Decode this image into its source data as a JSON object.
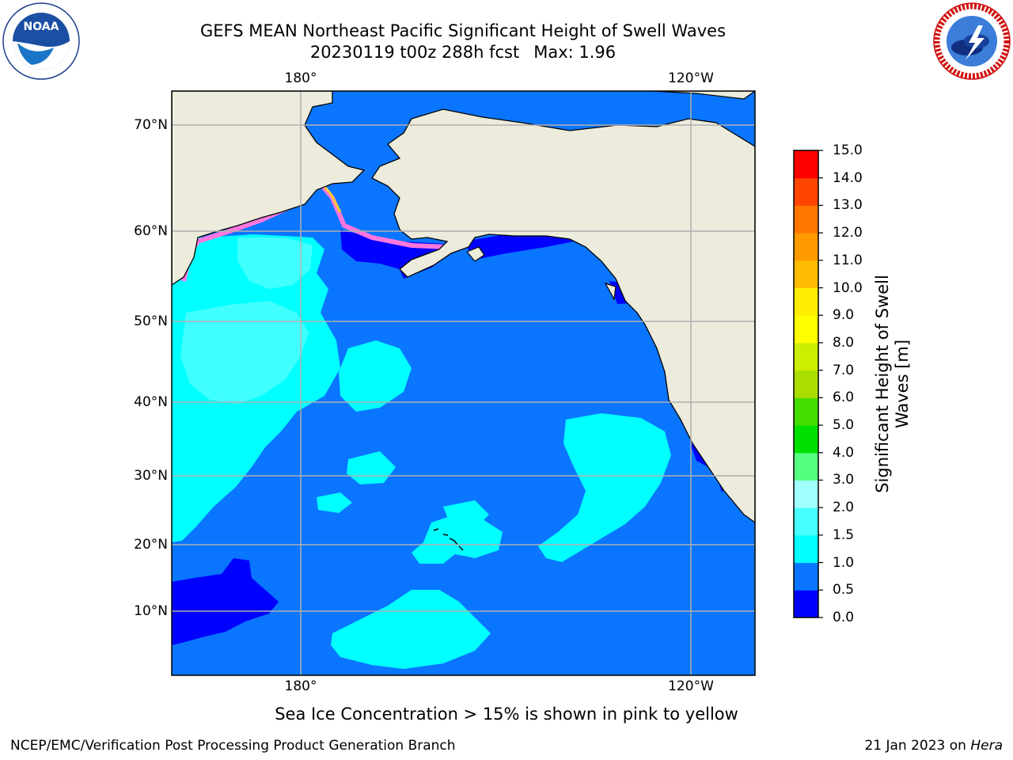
{
  "header": {
    "title_line1": "GEFS MEAN Northeast Pacific Significant Height of Swell Waves",
    "date_run": "20230119 t00z 288h fcst",
    "max_label": "Max: 1.96"
  },
  "logos": {
    "left_text": "NOAA",
    "left_ring_text": "NATIONAL OCEANIC AND ATMOSPHERIC ADMINISTRATION · U.S. DEPARTMENT OF COMMERCE",
    "right_ring_text": "NATIONAL WEATHER SERVICE"
  },
  "map": {
    "lat_labels": [
      "70°N",
      "60°N",
      "50°N",
      "40°N",
      "30°N",
      "20°N",
      "10°N"
    ],
    "lon_labels_top": [
      "180°",
      "120°W"
    ],
    "lon_labels_bottom": [
      "180°",
      "120°W"
    ],
    "colors": {
      "land": "#ecebdc",
      "ocean_0_5_1_0": "#0a75ff",
      "ocean_1_0_1_5": "#00ffff",
      "ocean_1_5_2_0": "#40ffff",
      "ocean_0_0_0_5": "#0000ff",
      "grid": "#b0b0b0"
    }
  },
  "colorbar": {
    "title_line1": "Significant Height of Swell",
    "title_line2": "Waves [m]",
    "ticks": [
      "0.0",
      "0.5",
      "1.0",
      "1.5",
      "2.0",
      "3.0",
      "4.0",
      "5.0",
      "6.0",
      "7.0",
      "8.0",
      "9.0",
      "10.0",
      "11.0",
      "12.0",
      "13.0",
      "14.0",
      "15.0"
    ],
    "colors": [
      "#0000ff",
      "#0a75ff",
      "#00ffff",
      "#48ffff",
      "#a0ffff",
      "#55ff7f",
      "#00e000",
      "#44dd00",
      "#aadd00",
      "#ccee00",
      "#ffff00",
      "#ffee00",
      "#ffbb00",
      "#ff9900",
      "#ff7700",
      "#ff4400",
      "#ff0000"
    ]
  },
  "note": "Sea Ice Concentration > 15% is shown in pink to yellow",
  "footer": {
    "left": "NCEP/EMC/Verification Post Processing Product Generation Branch",
    "right_prefix": "21 Jan 2023 on ",
    "right_italic": "Hera"
  }
}
